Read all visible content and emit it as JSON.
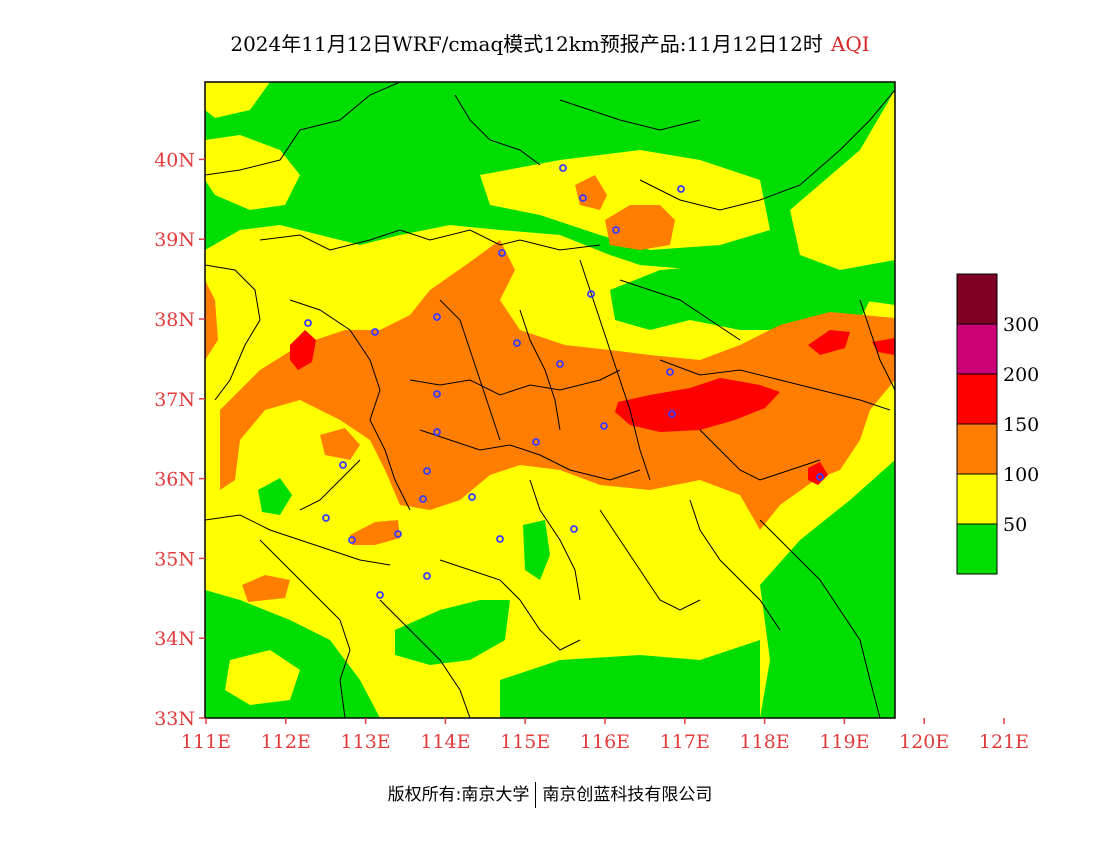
{
  "title": {
    "main": "2024年11月12日WRF/cmaq模式12km预报产品:11月12日12时",
    "product": "AQI"
  },
  "axes": {
    "lat_labels": [
      "33N",
      "34N",
      "35N",
      "36N",
      "37N",
      "38N",
      "39N",
      "40N"
    ],
    "lon_labels": [
      "111E",
      "112E",
      "113E",
      "114E",
      "115E",
      "116E",
      "117E",
      "118E",
      "119E",
      "120E",
      "121E"
    ]
  },
  "legend": {
    "bands": [
      {
        "color": "#00dd00",
        "from": 0,
        "to": 50
      },
      {
        "color": "#ffff00",
        "from": 50,
        "to": 100
      },
      {
        "color": "#ff7e00",
        "from": 100,
        "to": 150
      },
      {
        "color": "#ff0000",
        "from": 150,
        "to": 200
      },
      {
        "color": "#cc0077",
        "from": 200,
        "to": 300
      },
      {
        "color": "#7e0023",
        "from": 300,
        "to": 400
      }
    ],
    "labels": [
      "50",
      "100",
      "150",
      "200",
      "300"
    ]
  },
  "footer": {
    "left": "版权所有:南京大学",
    "right": "南京创蓝科技有限公司"
  },
  "colors": {
    "tick": "#e23b3b",
    "green": "#00dd00",
    "yellow": "#ffff00",
    "orange": "#ff7e00",
    "red": "#ff0000"
  }
}
